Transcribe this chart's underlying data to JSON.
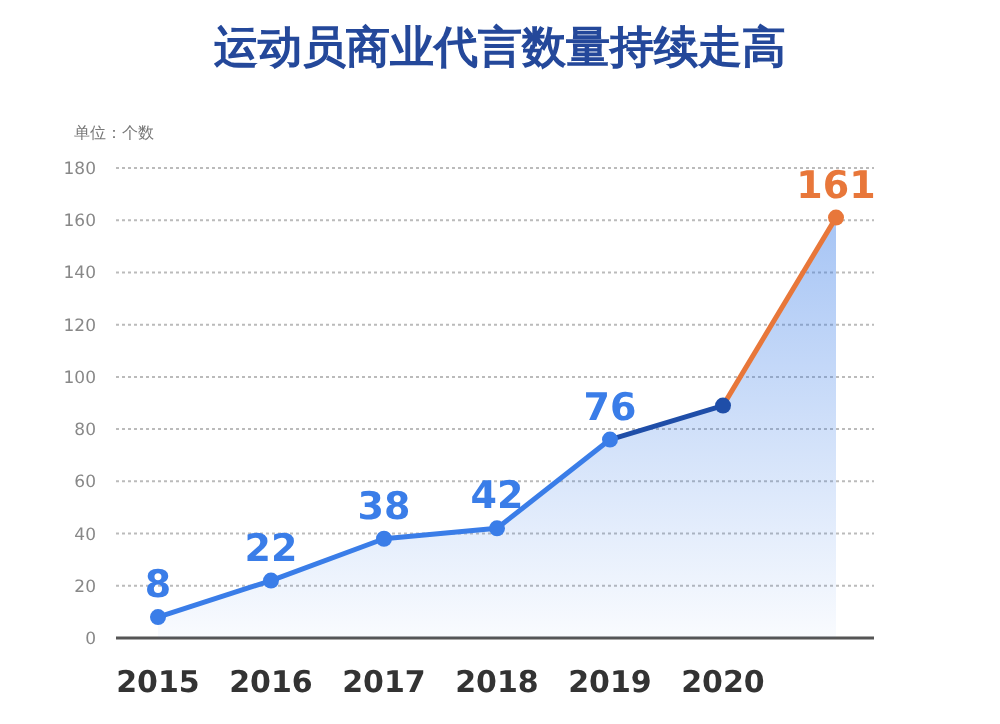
{
  "chart_data": {
    "type": "area",
    "title": "运动员商业代言数量持续走高",
    "ylabel": "单位：个数",
    "categories": [
      "2015",
      "2016",
      "2017",
      "2018",
      "2019",
      "2020",
      null
    ],
    "series": [
      {
        "color": "#3a7de8",
        "colors": [
          "#3a7de8",
          "#3a7de8",
          "#3a7de8",
          "#3a7de8",
          "#3a7de8",
          "#1f4ea8",
          "#e8773a"
        ],
        "values": [
          8,
          22,
          38,
          42,
          76,
          89,
          161
        ],
        "value_labels": [
          "8",
          "22",
          "38",
          "42",
          "76",
          null,
          "161"
        ]
      }
    ],
    "ylim": [
      0,
      180
    ],
    "yticks": [
      0,
      20,
      40,
      60,
      80,
      100,
      120,
      140,
      160,
      180
    ],
    "grid": "y",
    "marker": "circle"
  }
}
